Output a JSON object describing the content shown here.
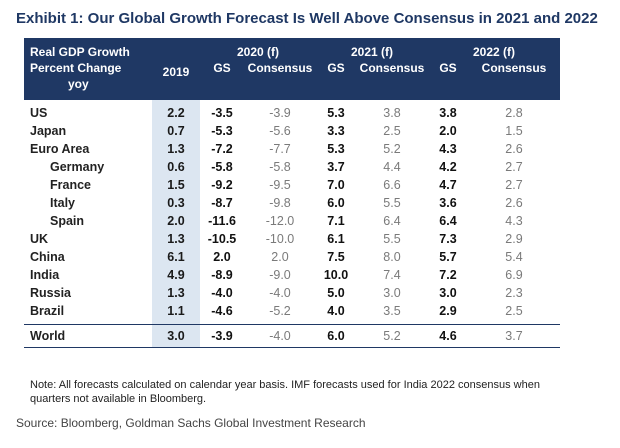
{
  "title": "Exhibit 1: Our Global Growth Forecast Is Well Above Consensus in 2021 and 2022",
  "header": {
    "label_line1": "Real GDP Growth",
    "label_line2": "Percent Change",
    "label_line3": "yoy",
    "year_2019": "2019",
    "year_2020": "2020 (f)",
    "year_2021": "2021 (f)",
    "year_2022": "2022 (f)",
    "gs": "GS",
    "consensus": "Consensus"
  },
  "chart_data": {
    "type": "table",
    "title": "Exhibit 1: Our Global Growth Forecast Is Well Above Consensus in 2021 and 2022",
    "columns": [
      "2019",
      "2020 (f) GS",
      "2020 (f) Consensus",
      "2021 (f) GS",
      "2021 (f) Consensus",
      "2022 (f) GS",
      "2022 (f) Consensus"
    ],
    "rows": [
      {
        "label": "US",
        "sub": false,
        "values": [
          "2.2",
          "-3.5",
          "-3.9",
          "5.3",
          "3.8",
          "3.8",
          "2.8"
        ]
      },
      {
        "label": "Japan",
        "sub": false,
        "values": [
          "0.7",
          "-5.3",
          "-5.6",
          "3.3",
          "2.5",
          "2.0",
          "1.5"
        ]
      },
      {
        "label": "Euro Area",
        "sub": false,
        "values": [
          "1.3",
          "-7.2",
          "-7.7",
          "5.3",
          "5.2",
          "4.3",
          "2.6"
        ]
      },
      {
        "label": "Germany",
        "sub": true,
        "values": [
          "0.6",
          "-5.8",
          "-5.8",
          "3.7",
          "4.4",
          "4.2",
          "2.7"
        ]
      },
      {
        "label": "France",
        "sub": true,
        "values": [
          "1.5",
          "-9.2",
          "-9.5",
          "7.0",
          "6.6",
          "4.7",
          "2.7"
        ]
      },
      {
        "label": "Italy",
        "sub": true,
        "values": [
          "0.3",
          "-8.7",
          "-9.8",
          "6.0",
          "5.5",
          "3.6",
          "2.6"
        ]
      },
      {
        "label": "Spain",
        "sub": true,
        "values": [
          "2.0",
          "-11.6",
          "-12.0",
          "7.1",
          "6.4",
          "6.4",
          "4.3"
        ]
      },
      {
        "label": "UK",
        "sub": false,
        "values": [
          "1.3",
          "-10.5",
          "-10.0",
          "6.1",
          "5.5",
          "7.3",
          "2.9"
        ]
      },
      {
        "label": "China",
        "sub": false,
        "values": [
          "6.1",
          "2.0",
          "2.0",
          "7.5",
          "8.0",
          "5.7",
          "5.4"
        ]
      },
      {
        "label": "India",
        "sub": false,
        "values": [
          "4.9",
          "-8.9",
          "-9.0",
          "10.0",
          "7.4",
          "7.2",
          "6.9"
        ]
      },
      {
        "label": "Russia",
        "sub": false,
        "values": [
          "1.3",
          "-4.0",
          "-4.0",
          "5.0",
          "3.0",
          "3.0",
          "2.3"
        ]
      },
      {
        "label": "Brazil",
        "sub": false,
        "values": [
          "1.1",
          "-4.6",
          "-5.2",
          "4.0",
          "3.5",
          "2.9",
          "2.5"
        ]
      }
    ],
    "world": {
      "label": "World",
      "values": [
        "3.0",
        "-3.9",
        "-4.0",
        "6.0",
        "5.2",
        "4.6",
        "3.7"
      ]
    }
  },
  "note": "Note: All forecasts calculated on calendar year basis. IMF forecasts used for India 2022 consensus when quarters not available in Bloomberg.",
  "source": "Source: Bloomberg, Goldman Sachs Global Investment Research",
  "colors": {
    "header_bg": "#1f3864",
    "col_2019_bg": "#dce6f1",
    "consensus_text": "#7a7a7a"
  }
}
